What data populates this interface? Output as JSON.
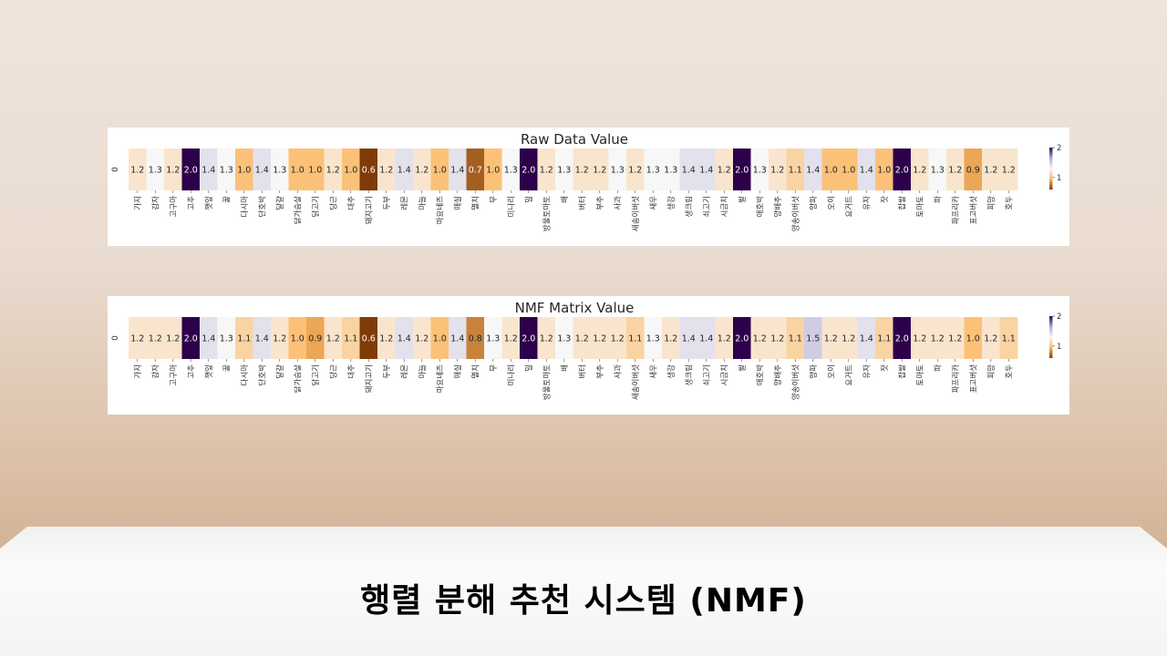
{
  "slide": {
    "title": "행렬 분해 추천 시스템 (NMF)"
  },
  "colors": {
    "low": "#7f3b08",
    "mid_low": "#fdb863",
    "mid": "#f7f7f7",
    "mid_high": "#b2abd2",
    "high": "#2d004b"
  },
  "chart_data": [
    {
      "type": "heatmap",
      "title": "Raw Data Value",
      "row_labels": [
        "0"
      ],
      "x": [
        "가지",
        "감자",
        "고구마",
        "고추",
        "깻잎",
        "꿀",
        "다시마",
        "단호박",
        "달걀",
        "닭가슴살",
        "닭고기",
        "당근",
        "대추",
        "돼지고기",
        "두부",
        "레몬",
        "마늘",
        "마요네즈",
        "매실",
        "멸치",
        "무",
        "미나리",
        "밀",
        "방울토마토",
        "배",
        "버터",
        "부추",
        "사과",
        "새송이버섯",
        "새우",
        "생강",
        "생크림",
        "쇠고기",
        "시금치",
        "쌀",
        "애호박",
        "양배추",
        "양송이버섯",
        "양파",
        "오이",
        "요거트",
        "유자",
        "잣",
        "찹쌀",
        "토마토",
        "파",
        "파프리카",
        "표고버섯",
        "피망",
        "호두"
      ],
      "values": [
        1.2,
        1.3,
        1.2,
        2.0,
        1.4,
        1.3,
        1.0,
        1.4,
        1.3,
        1.0,
        1.0,
        1.2,
        1.0,
        0.6,
        1.2,
        1.4,
        1.2,
        1.0,
        1.4,
        0.7,
        1.0,
        1.3,
        2.0,
        1.2,
        1.3,
        1.2,
        1.2,
        1.3,
        1.2,
        1.3,
        1.3,
        1.4,
        1.4,
        1.2,
        2.0,
        1.3,
        1.2,
        1.1,
        1.4,
        1.0,
        1.0,
        1.4,
        1.0,
        2.0,
        1.2,
        1.3,
        1.2,
        0.9,
        1.2,
        1.2
      ],
      "colorbar_ticks": [
        2,
        1
      ],
      "vmin": 0.6,
      "vmax": 2.0
    },
    {
      "type": "heatmap",
      "title": "NMF Matrix Value",
      "row_labels": [
        "0"
      ],
      "x": [
        "가지",
        "감자",
        "고구마",
        "고추",
        "깻잎",
        "꿀",
        "다시마",
        "단호박",
        "달걀",
        "닭가슴살",
        "닭고기",
        "당근",
        "대추",
        "돼지고기",
        "두부",
        "레몬",
        "마늘",
        "마요네즈",
        "매실",
        "멸치",
        "무",
        "미나리",
        "밀",
        "방울토마토",
        "배",
        "버터",
        "부추",
        "사과",
        "새송이버섯",
        "새우",
        "생강",
        "생크림",
        "쇠고기",
        "시금치",
        "쌀",
        "애호박",
        "양배추",
        "양송이버섯",
        "양파",
        "오이",
        "요거트",
        "유자",
        "잣",
        "찹쌀",
        "토마토",
        "파",
        "파프리카",
        "표고버섯",
        "피망",
        "호두"
      ],
      "values": [
        1.2,
        1.2,
        1.2,
        2.0,
        1.4,
        1.3,
        1.1,
        1.4,
        1.2,
        1.0,
        0.9,
        1.2,
        1.1,
        0.6,
        1.2,
        1.4,
        1.2,
        1.0,
        1.4,
        0.8,
        1.3,
        1.2,
        2.0,
        1.2,
        1.3,
        1.2,
        1.2,
        1.2,
        1.1,
        1.3,
        1.2,
        1.4,
        1.4,
        1.2,
        2.0,
        1.2,
        1.2,
        1.1,
        1.5,
        1.2,
        1.2,
        1.4,
        1.1,
        2.0,
        1.2,
        1.2,
        1.2,
        1.0,
        1.2,
        1.1
      ],
      "colorbar_ticks": [
        2,
        1
      ],
      "vmin": 0.6,
      "vmax": 2.0
    }
  ]
}
